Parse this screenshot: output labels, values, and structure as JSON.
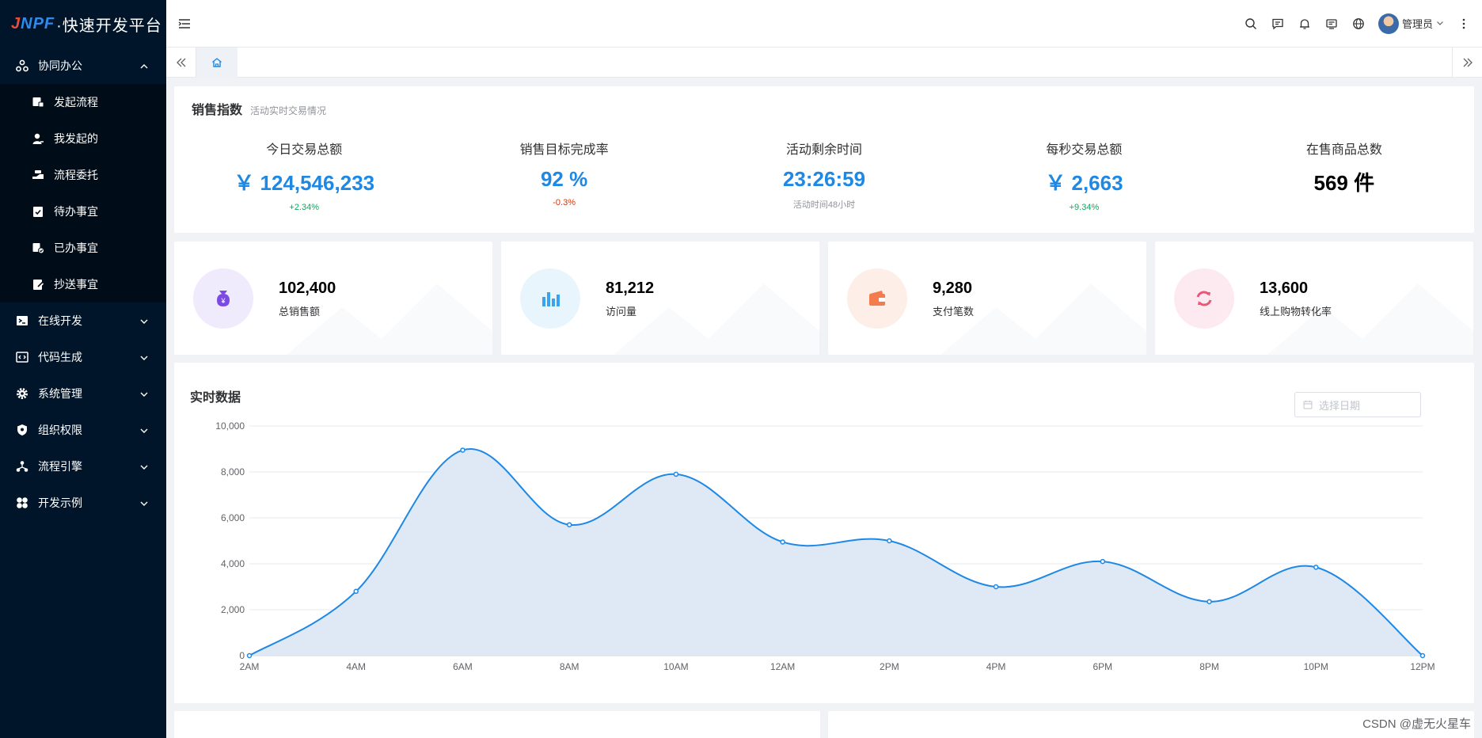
{
  "app": {
    "logo_text": "JNPF",
    "logo_dot": "·",
    "logo_suffix": "快速开发平台"
  },
  "sidebar": {
    "groups": [
      {
        "label": "协同办公",
        "icon": "collab-icon",
        "expanded": true,
        "items": [
          {
            "label": "发起流程",
            "icon": "start-flow-icon"
          },
          {
            "label": "我发起的",
            "icon": "my-initiated-icon"
          },
          {
            "label": "流程委托",
            "icon": "delegate-icon"
          },
          {
            "label": "待办事宜",
            "icon": "todo-icon"
          },
          {
            "label": "已办事宜",
            "icon": "done-icon"
          },
          {
            "label": "抄送事宜",
            "icon": "cc-icon"
          }
        ]
      },
      {
        "label": "在线开发",
        "icon": "terminal-icon"
      },
      {
        "label": "代码生成",
        "icon": "code-icon"
      },
      {
        "label": "系统管理",
        "icon": "gear-icon"
      },
      {
        "label": "组织权限",
        "icon": "shield-icon"
      },
      {
        "label": "流程引擎",
        "icon": "flow-engine-icon"
      },
      {
        "label": "开发示例",
        "icon": "example-icon"
      }
    ]
  },
  "header": {
    "user_name": "管理员",
    "icons": [
      "search-icon",
      "message-icon",
      "bell-icon",
      "notice-icon",
      "globe-icon"
    ]
  },
  "sales": {
    "title": "销售指数",
    "subtitle": "活动实时交易情况",
    "kpis": [
      {
        "label": "今日交易总额",
        "value": "￥ 124,546,233",
        "note": "+2.34%",
        "tone": "up"
      },
      {
        "label": "销售目标完成率",
        "value": "92 %",
        "note": "-0.3%",
        "tone": "down"
      },
      {
        "label": "活动剩余时间",
        "value": "23:26:59",
        "note": "活动时间48小时",
        "tone": "muted"
      },
      {
        "label": "每秒交易总额",
        "value": "￥ 2,663",
        "note": "+9.34%",
        "tone": "up"
      },
      {
        "label": "在售商品总数",
        "value": "569 件",
        "note": "",
        "tone": "dark"
      }
    ]
  },
  "stats": [
    {
      "value": "102,400",
      "label": "总销售额",
      "icon": "money-bag-icon",
      "color": "#7b4ae2",
      "bg": "#efeafc"
    },
    {
      "value": "81,212",
      "label": "访问量",
      "icon": "bar-chart-icon",
      "color": "#3aa3f0",
      "bg": "#e9f5fd"
    },
    {
      "value": "9,280",
      "label": "支付笔数",
      "icon": "wallet-icon",
      "color": "#f47b4e",
      "bg": "#fdeee8"
    },
    {
      "value": "13,600",
      "label": "线上购物转化率",
      "icon": "refresh-icon",
      "color": "#e8577a",
      "bg": "#fdeaf0"
    }
  ],
  "realtime": {
    "title": "实时数据",
    "date_placeholder": "选择日期"
  },
  "chart_data": {
    "type": "area",
    "title": "实时数据",
    "x": [
      "2AM",
      "4AM",
      "6AM",
      "8AM",
      "10AM",
      "12AM",
      "2PM",
      "4PM",
      "6PM",
      "8PM",
      "10PM",
      "12PM"
    ],
    "values": [
      0,
      2800,
      8950,
      5700,
      7900,
      4950,
      5000,
      3000,
      4100,
      2350,
      3850,
      0
    ],
    "ylim": [
      0,
      10000
    ],
    "yticks": [
      "0",
      "2,000",
      "4,000",
      "6,000",
      "8,000",
      "10,000"
    ],
    "grid": true,
    "color": "#1e88e5",
    "fill": "#dbe7f5"
  },
  "watermark": "CSDN @虚无火星车"
}
